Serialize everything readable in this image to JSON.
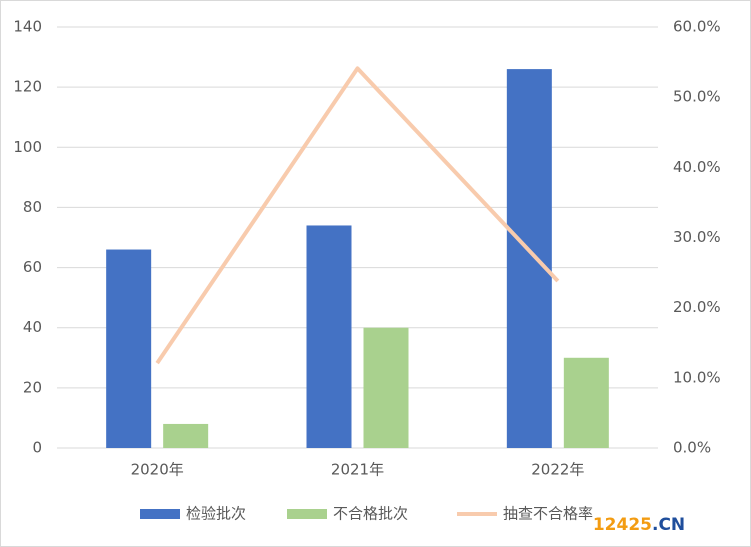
{
  "chart_data": {
    "type": "bar-line",
    "categories": [
      "2020年",
      "2021年",
      "2022年"
    ],
    "series": [
      {
        "name": "检验批次",
        "type": "bar",
        "color": "#4472c4",
        "values": [
          66,
          74,
          126
        ]
      },
      {
        "name": "不合格批次",
        "type": "bar",
        "color": "#a9d18e",
        "values": [
          8,
          40,
          30
        ]
      },
      {
        "name": "抽查不合格率",
        "type": "line",
        "axis": "y2",
        "color": "#f8cbad",
        "values": [
          12.1,
          54.1,
          23.8
        ]
      }
    ],
    "ylim": [
      0,
      140
    ],
    "yticks": [
      0,
      20,
      40,
      60,
      80,
      100,
      120,
      140
    ],
    "y2lim": [
      0,
      60
    ],
    "y2ticks": [
      {
        "value": 0,
        "label": "0.0%"
      },
      {
        "value": 10,
        "label": "10.0%"
      },
      {
        "value": 20,
        "label": "20.0%"
      },
      {
        "value": 30,
        "label": "30.0%"
      },
      {
        "value": 40,
        "label": "40.0%"
      },
      {
        "value": 50,
        "label": "50.0%"
      },
      {
        "value": 60,
        "label": "60.0%"
      }
    ],
    "grid": true,
    "legend": "bottom"
  },
  "watermark": {
    "digits": "12425",
    "suffix": ".CN"
  }
}
